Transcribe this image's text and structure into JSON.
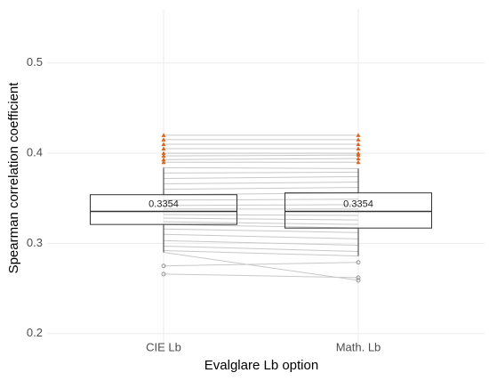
{
  "chart_data": {
    "type": "box",
    "xlabel": "Evalglare Lb option",
    "ylabel": "Spearman correlation coefficient",
    "categories": [
      "CIE Lb",
      "Math. Lb"
    ],
    "boxes": [
      {
        "low": 0.29,
        "q1": 0.321,
        "median": 0.3354,
        "q3": 0.354,
        "high": 0.384
      },
      {
        "low": 0.286,
        "q1": 0.317,
        "median": 0.3354,
        "q3": 0.356,
        "high": 0.383
      }
    ],
    "pairs": [
      [
        0.42,
        0.42
      ],
      [
        0.415,
        0.415
      ],
      [
        0.41,
        0.41
      ],
      [
        0.405,
        0.405
      ],
      [
        0.4,
        0.4
      ],
      [
        0.397,
        0.398
      ],
      [
        0.393,
        0.394
      ],
      [
        0.39,
        0.39
      ],
      [
        0.384,
        0.383
      ],
      [
        0.378,
        0.379
      ],
      [
        0.372,
        0.374
      ],
      [
        0.366,
        0.368
      ],
      [
        0.36,
        0.362
      ],
      [
        0.354,
        0.356
      ],
      [
        0.348,
        0.349
      ],
      [
        0.342,
        0.343
      ],
      [
        0.338,
        0.338
      ],
      [
        0.332,
        0.331
      ],
      [
        0.328,
        0.326
      ],
      [
        0.324,
        0.321
      ],
      [
        0.321,
        0.317
      ],
      [
        0.316,
        0.312
      ],
      [
        0.31,
        0.305
      ],
      [
        0.303,
        0.298
      ],
      [
        0.297,
        0.291
      ],
      [
        0.292,
        0.286
      ],
      [
        0.29,
        0.259
      ],
      [
        0.275,
        0.279
      ],
      [
        0.266,
        0.262
      ]
    ],
    "line_color": "#c8c8c8",
    "high_outlier_color": "#d9661f",
    "low_outlier_color": "#999999",
    "ylim": [
      0.18,
      0.56
    ],
    "yticks": [
      0.2,
      0.3,
      0.4,
      0.5
    ],
    "grid": true
  }
}
